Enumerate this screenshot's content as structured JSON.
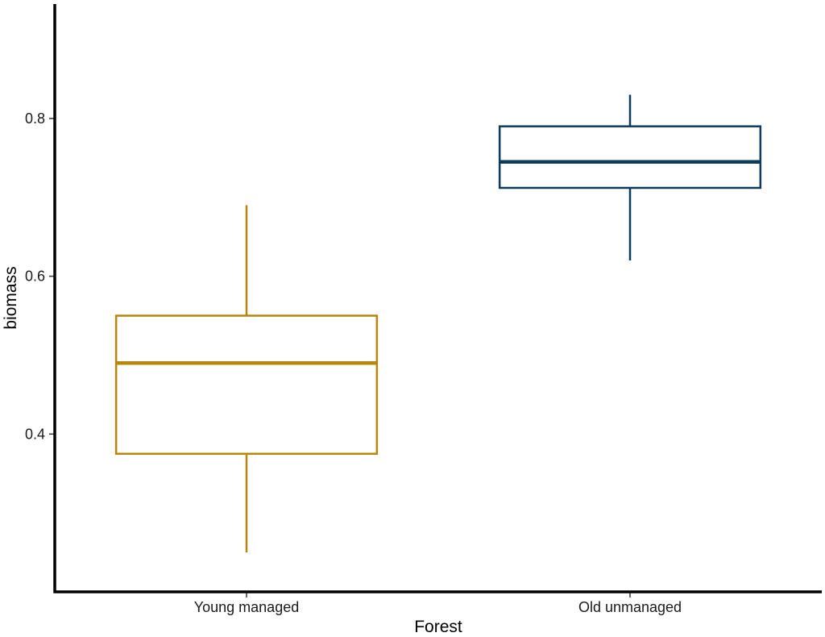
{
  "chart_data": {
    "type": "boxplot",
    "xlabel": "Forest",
    "ylabel": "biomass",
    "ylim": [
      0.2,
      0.945
    ],
    "yticks": [
      0.4,
      0.6,
      0.8
    ],
    "ytick_labels": [
      "0.4",
      "0.6",
      "0.8"
    ],
    "grid": false,
    "legend": "none",
    "categories": [
      "Young managed",
      "Old unmanaged"
    ],
    "boxes": [
      {
        "category": "Young managed",
        "whisker_low": 0.25,
        "q1": 0.375,
        "median": 0.49,
        "q3": 0.55,
        "whisker_high": 0.69,
        "color": "#b8860b"
      },
      {
        "category": "Old unmanaged",
        "whisker_low": 0.62,
        "q1": 0.712,
        "median": 0.745,
        "q3": 0.79,
        "whisker_high": 0.83,
        "color": "#0d3b5c"
      }
    ]
  }
}
